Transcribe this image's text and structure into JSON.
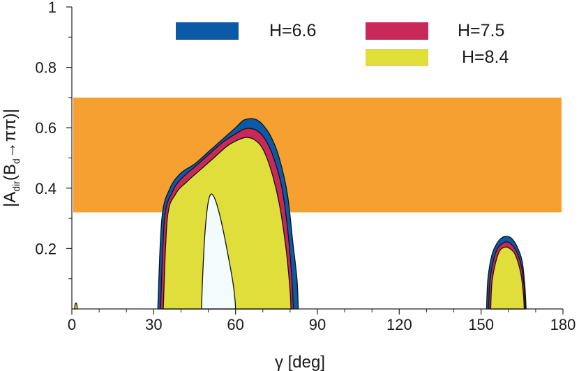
{
  "chart_data": {
    "type": "area",
    "title": "",
    "xlabel": "γ [deg]",
    "ylabel": "|A_dir(B_d→ππ)|",
    "ylabel_parts": {
      "pre": "|A",
      "sub1": "dir",
      "mid": "(B",
      "sub2": "d",
      "post": "→ππ)|"
    },
    "xlim": [
      0,
      180
    ],
    "ylim": [
      0,
      1
    ],
    "x_ticks": [
      0,
      30,
      60,
      90,
      120,
      150,
      180
    ],
    "x_tick_labels": [
      "0",
      "30",
      "60",
      "90",
      "120",
      "150",
      "180"
    ],
    "y_ticks": [
      0.2,
      0.4,
      0.6,
      0.8,
      1
    ],
    "y_tick_labels": [
      "0.2",
      "0.4",
      "0.6",
      "0.8",
      "1"
    ],
    "grid": false,
    "legend_position": "top",
    "band": {
      "color": "#f5a030",
      "y_range": [
        0.32,
        0.7
      ]
    },
    "series": [
      {
        "name": "H=6.6",
        "color": "#0a5aa8",
        "regions": [
          {
            "x": [
              31.5,
              33,
              36,
              40,
              45,
              50,
              55,
              60,
              63,
              66,
              68,
              70,
              73,
              76,
              79,
              81,
              82.5,
              83
            ],
            "y": [
              0,
              0.3,
              0.4,
              0.45,
              0.48,
              0.52,
              0.56,
              0.6,
              0.625,
              0.63,
              0.625,
              0.61,
              0.57,
              0.5,
              0.38,
              0.22,
              0.1,
              0
            ]
          },
          {
            "x": [
              152,
              152.5,
              154,
              156,
              158,
              159.5,
              161,
              163,
              165,
              166,
              166.5
            ],
            "y": [
              0,
              0.1,
              0.18,
              0.22,
              0.238,
              0.24,
              0.235,
              0.21,
              0.16,
              0.08,
              0
            ]
          }
        ]
      },
      {
        "name": "H=7.5",
        "color": "#c8285a",
        "regions": [
          {
            "x": [
              32.5,
              34,
              37,
              40,
              45,
              50,
              55,
              60,
              63,
              65,
              68,
              71,
              74,
              77,
              79,
              80.5,
              81.2
            ],
            "y": [
              0,
              0.3,
              0.39,
              0.43,
              0.47,
              0.51,
              0.55,
              0.58,
              0.595,
              0.598,
              0.59,
              0.56,
              0.5,
              0.4,
              0.27,
              0.12,
              0
            ]
          },
          {
            "x": [
              152.8,
              153.2,
              154.5,
              156,
              158,
              159.5,
              161,
              163,
              164.8,
              165.8,
              166.2
            ],
            "y": [
              0,
              0.09,
              0.16,
              0.2,
              0.218,
              0.222,
              0.215,
              0.19,
              0.14,
              0.07,
              0
            ]
          }
        ]
      },
      {
        "name": "H=8.4",
        "color": "#e0de3a",
        "regions": [
          {
            "x": [
              33.5,
              35,
              38,
              42,
              47,
              52,
              57,
              61,
              64,
              67,
              70,
              73,
              76,
              78.5,
              80,
              80.3
            ],
            "y": [
              0,
              0.3,
              0.38,
              0.42,
              0.46,
              0.5,
              0.54,
              0.56,
              0.568,
              0.56,
              0.53,
              0.46,
              0.35,
              0.2,
              0.06,
              0
            ]
          },
          {
            "x": [
              153.5,
              154,
              155.5,
              157,
              159,
              160.5,
              162.5,
              164.5,
              165.5,
              165.8
            ],
            "y": [
              0,
              0.09,
              0.16,
              0.195,
              0.205,
              0.2,
              0.18,
              0.12,
              0.05,
              0
            ]
          },
          {
            "x": [
              1.0,
              1.2,
              1.5,
              1.8,
              2.0
            ],
            "y": [
              0,
              0.015,
              0.02,
              0.015,
              0
            ]
          }
        ]
      }
    ],
    "holes": [
      {
        "color": "#f4fbfc",
        "x": [
          47.5,
          48,
          48.7,
          49.6,
          50.4,
          51.4,
          53,
          55,
          57,
          59,
          59.8,
          60
        ],
        "y": [
          0,
          0.12,
          0.24,
          0.33,
          0.37,
          0.38,
          0.35,
          0.28,
          0.19,
          0.09,
          0.03,
          0
        ]
      }
    ]
  }
}
